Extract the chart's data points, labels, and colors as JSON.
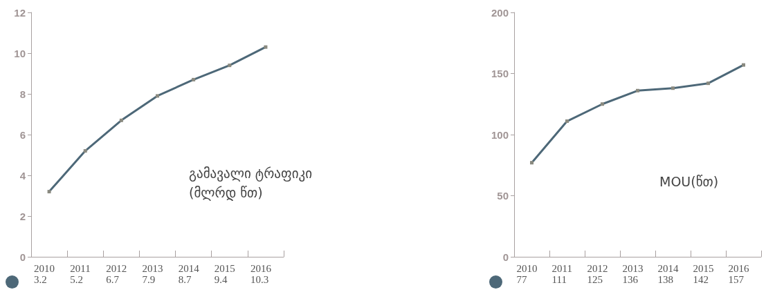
{
  "chart_data": [
    {
      "type": "line",
      "title": "გამავალი ტრაფიკი\n(მლრდ წთ)",
      "categories": [
        "2010",
        "2011",
        "2012",
        "2013",
        "2014",
        "2015",
        "2016"
      ],
      "series": [
        {
          "color": "#4d6878",
          "values": [
            3.2,
            5.2,
            6.7,
            7.9,
            8.7,
            9.4,
            10.3
          ]
        }
      ],
      "ylim": [
        0,
        12
      ],
      "yticks": [
        0,
        2,
        4,
        6,
        8,
        10,
        12
      ],
      "grid": false,
      "marker": "square",
      "line_style": "solid",
      "data_labels": true
    },
    {
      "type": "line",
      "title": "MOU(წთ)",
      "categories": [
        "2010",
        "2011",
        "2012",
        "2013",
        "2014",
        "2015",
        "2016"
      ],
      "series": [
        {
          "color": "#4d6878",
          "values": [
            77,
            111,
            125,
            136,
            138,
            142,
            157
          ]
        }
      ],
      "ylim": [
        0,
        200
      ],
      "yticks": [
        0,
        50,
        100,
        150,
        200
      ],
      "grid": false,
      "marker": "square",
      "line_style": "solid",
      "data_labels": true
    }
  ]
}
